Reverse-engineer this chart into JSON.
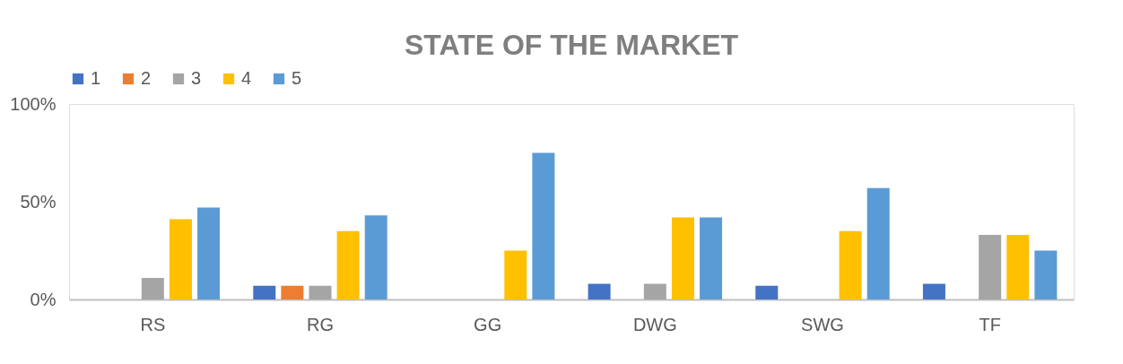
{
  "chart_data": {
    "type": "bar",
    "title": "STATE OF THE MARKET",
    "categories": [
      "RS",
      "RG",
      "GG",
      "DWG",
      "SWG",
      "TF"
    ],
    "series": [
      {
        "name": "1",
        "color": "#4472c4",
        "values": [
          null,
          7,
          null,
          8,
          7,
          8
        ]
      },
      {
        "name": "2",
        "color": "#ed7d31",
        "values": [
          null,
          7,
          null,
          null,
          null,
          null
        ]
      },
      {
        "name": "3",
        "color": "#a5a5a5",
        "values": [
          11,
          7,
          null,
          8,
          null,
          33
        ]
      },
      {
        "name": "4",
        "color": "#ffc000",
        "values": [
          41,
          35,
          25,
          42,
          35,
          33
        ]
      },
      {
        "name": "5",
        "color": "#5b9bd5",
        "values": [
          47,
          43,
          75,
          42,
          57,
          25
        ]
      }
    ],
    "ylim": [
      0,
      100
    ],
    "yticks": [
      {
        "value": 0,
        "label": "0%"
      },
      {
        "value": 50,
        "label": "50%"
      },
      {
        "value": 100,
        "label": "100%"
      }
    ],
    "grid": false,
    "legend": "top"
  }
}
